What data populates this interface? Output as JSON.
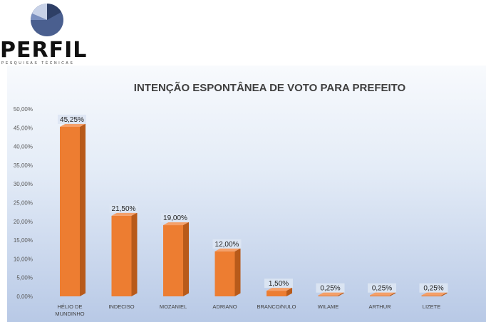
{
  "logo": {
    "name": "PERFIL",
    "tagline": "PESQUISAS TÉCNICAS",
    "colors": [
      "#4a5f8f",
      "#7a8fbf",
      "#c8d2e8",
      "#2e3f66"
    ]
  },
  "chart_data": {
    "type": "bar",
    "title": "INTENÇÃO ESPONTÂNEA DE VOTO PARA PREFEITO",
    "xlabel": "",
    "ylabel": "",
    "ylim": [
      0,
      50
    ],
    "yticks": [
      "0,00%",
      "5,00%",
      "10,00%",
      "15,00%",
      "20,00%",
      "25,00%",
      "30,00%",
      "35,00%",
      "40,00%",
      "45,00%",
      "50,00%"
    ],
    "categories": [
      [
        "HÉLIO DE",
        "MUNDINHO"
      ],
      [
        "INDECISO"
      ],
      [
        "MOZANIEL"
      ],
      [
        "ADRIANO"
      ],
      [
        "BRANCO/NULO"
      ],
      [
        "WILAME"
      ],
      [
        "ARTHUR"
      ],
      [
        "LIZETE"
      ]
    ],
    "values": [
      45.25,
      21.5,
      19.0,
      12.0,
      1.5,
      0.25,
      0.25,
      0.25
    ],
    "data_labels": [
      "45,25%",
      "21,50%",
      "19,00%",
      "12,00%",
      "1,50%",
      "0,25%",
      "0,25%",
      "0,25%"
    ],
    "bar_color": "#ed7d31",
    "bar_side_color": "#b85a1a",
    "bar_top_color": "#f4a06a",
    "grid": false,
    "legend": "none"
  }
}
